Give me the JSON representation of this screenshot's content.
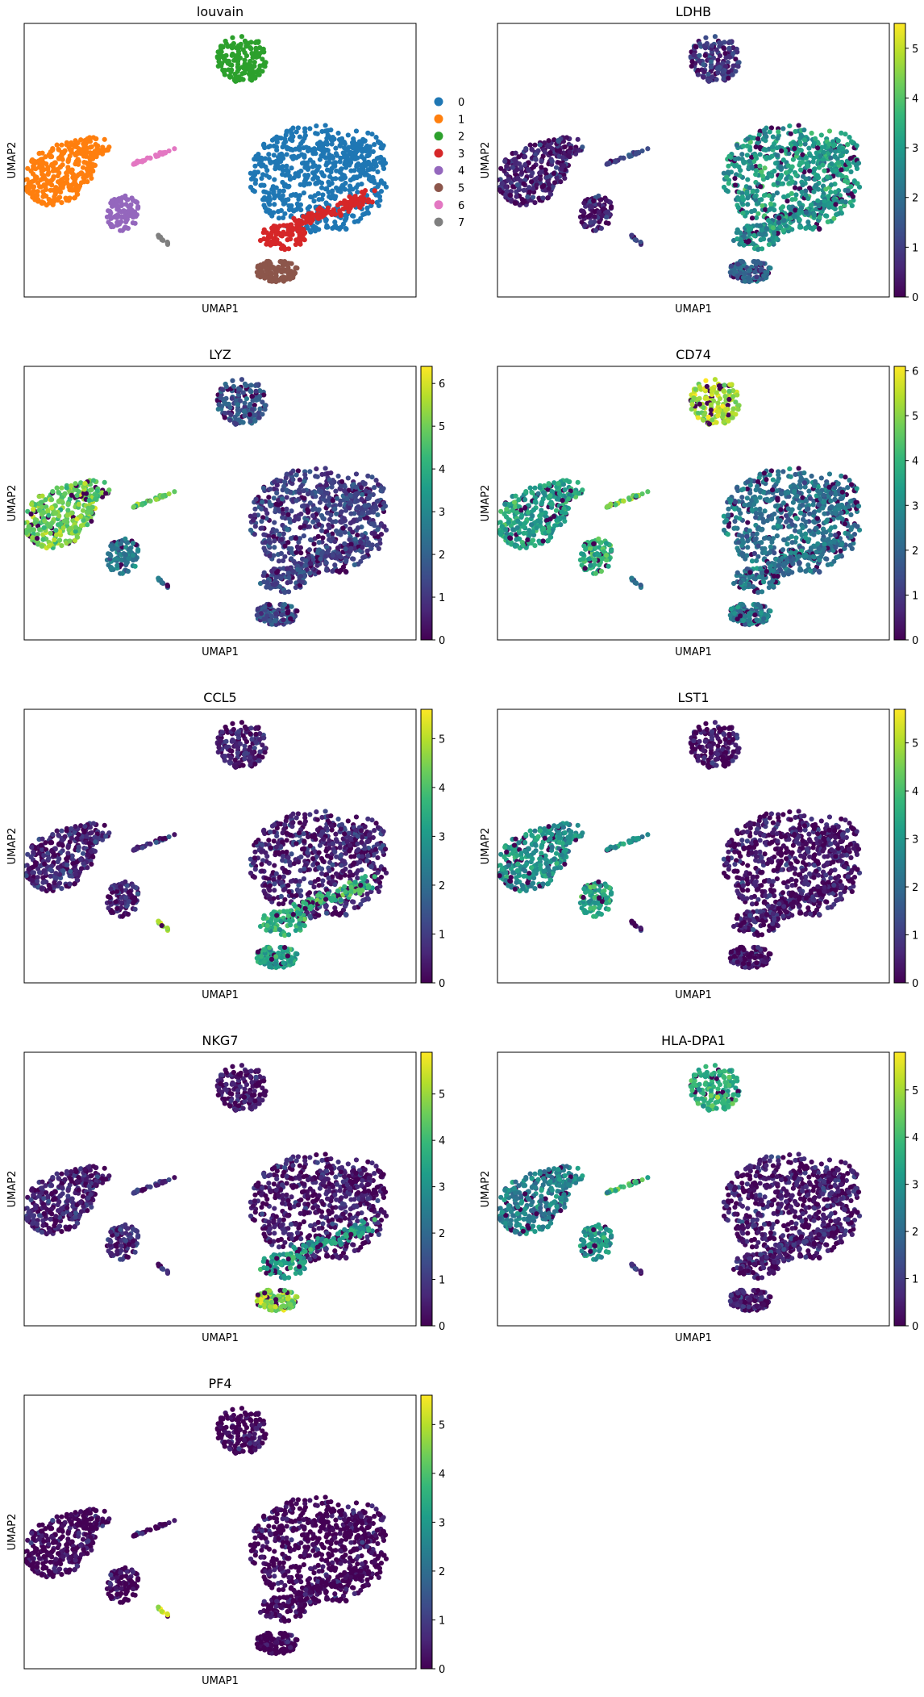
{
  "chart_data": [
    {
      "type": "scatter",
      "title": "louvain",
      "xlabel": "UMAP1",
      "ylabel": "UMAP2",
      "legend": {
        "placement": "right",
        "entries": [
          {
            "label": "0",
            "color": "#1f77b4"
          },
          {
            "label": "1",
            "color": "#ff7f0e"
          },
          {
            "label": "2",
            "color": "#2ca02c"
          },
          {
            "label": "3",
            "color": "#d62728"
          },
          {
            "label": "4",
            "color": "#9467bd"
          },
          {
            "label": "5",
            "color": "#8c564b"
          },
          {
            "label": "6",
            "color": "#e377c2"
          },
          {
            "label": "7",
            "color": "#7f7f7f"
          }
        ]
      }
    },
    {
      "type": "scatter",
      "title": "LDHB",
      "xlabel": "UMAP1",
      "ylabel": "UMAP2",
      "colorbar": {
        "min": 0,
        "max": 5.5,
        "ticks": [
          "0",
          "1",
          "2",
          "3",
          "4",
          "5"
        ]
      },
      "expression": {
        "cluster_0": 3.0,
        "cluster_1": 0.6,
        "cluster_2": 0.9,
        "cluster_3": 2.7,
        "cluster_4": 0.5,
        "cluster_5": 1.8,
        "cluster_6": 1.2,
        "cluster_7": 1.0
      }
    },
    {
      "type": "scatter",
      "title": "LYZ",
      "xlabel": "UMAP1",
      "ylabel": "UMAP2",
      "colorbar": {
        "min": 0,
        "max": 6.4,
        "ticks": [
          "0",
          "1",
          "2",
          "3",
          "4",
          "5",
          "6"
        ]
      },
      "expression": {
        "cluster_0": 1.2,
        "cluster_1": 5.0,
        "cluster_2": 1.8,
        "cluster_3": 1.3,
        "cluster_4": 2.6,
        "cluster_5": 1.6,
        "cluster_6": 4.7,
        "cluster_7": 2.2
      }
    },
    {
      "type": "scatter",
      "title": "CD74",
      "xlabel": "UMAP1",
      "ylabel": "UMAP2",
      "colorbar": {
        "min": 0,
        "max": 6.1,
        "ticks": [
          "0",
          "1",
          "2",
          "3",
          "4",
          "5",
          "6"
        ]
      },
      "expression": {
        "cluster_0": 2.3,
        "cluster_1": 3.5,
        "cluster_2": 5.3,
        "cluster_3": 2.5,
        "cluster_4": 3.9,
        "cluster_5": 2.6,
        "cluster_6": 4.8,
        "cluster_7": 2.4
      }
    },
    {
      "type": "scatter",
      "title": "CCL5",
      "xlabel": "UMAP1",
      "ylabel": "UMAP2",
      "colorbar": {
        "min": 0,
        "max": 5.6,
        "ticks": [
          "0",
          "1",
          "2",
          "3",
          "4",
          "5"
        ]
      },
      "expression": {
        "cluster_0": 0.6,
        "cluster_1": 0.6,
        "cluster_2": 0.5,
        "cluster_3": 3.6,
        "cluster_4": 0.6,
        "cluster_5": 3.2,
        "cluster_6": 0.8,
        "cluster_7": 4.6
      }
    },
    {
      "type": "scatter",
      "title": "LST1",
      "xlabel": "UMAP1",
      "ylabel": "UMAP2",
      "colorbar": {
        "min": 0,
        "max": 5.7,
        "ticks": [
          "0",
          "1",
          "2",
          "3",
          "4",
          "5"
        ]
      },
      "expression": {
        "cluster_0": 0.4,
        "cluster_1": 2.9,
        "cluster_2": 0.3,
        "cluster_3": 0.4,
        "cluster_4": 3.4,
        "cluster_5": 0.3,
        "cluster_6": 2.8,
        "cluster_7": 0.6
      }
    },
    {
      "type": "scatter",
      "title": "NKG7",
      "xlabel": "UMAP1",
      "ylabel": "UMAP2",
      "colorbar": {
        "min": 0,
        "max": 5.9,
        "ticks": [
          "0",
          "1",
          "2",
          "3",
          "4",
          "5"
        ]
      },
      "expression": {
        "cluster_0": 0.4,
        "cluster_1": 0.6,
        "cluster_2": 0.4,
        "cluster_3": 3.3,
        "cluster_4": 0.8,
        "cluster_5": 4.8,
        "cluster_6": 0.7,
        "cluster_7": 0.9
      }
    },
    {
      "type": "scatter",
      "title": "HLA-DPA1",
      "xlabel": "UMAP1",
      "ylabel": "UMAP2",
      "colorbar": {
        "min": 0,
        "max": 5.8,
        "ticks": [
          "0",
          "1",
          "2",
          "3",
          "4",
          "5"
        ]
      },
      "expression": {
        "cluster_0": 0.4,
        "cluster_1": 2.6,
        "cluster_2": 3.7,
        "cluster_3": 0.6,
        "cluster_4": 3.0,
        "cluster_5": 0.5,
        "cluster_6": 3.8,
        "cluster_7": 1.0
      }
    },
    {
      "type": "scatter",
      "title": "PF4",
      "xlabel": "UMAP1",
      "ylabel": "UMAP2",
      "colorbar": {
        "min": 0,
        "max": 5.6,
        "ticks": [
          "0",
          "1",
          "2",
          "3",
          "4",
          "5"
        ]
      },
      "expression": {
        "cluster_0": 0.0,
        "cluster_1": 0.1,
        "cluster_2": 0.0,
        "cluster_3": 0.0,
        "cluster_4": 0.1,
        "cluster_5": 0.0,
        "cluster_6": 0.1,
        "cluster_7": 5.2
      }
    }
  ]
}
